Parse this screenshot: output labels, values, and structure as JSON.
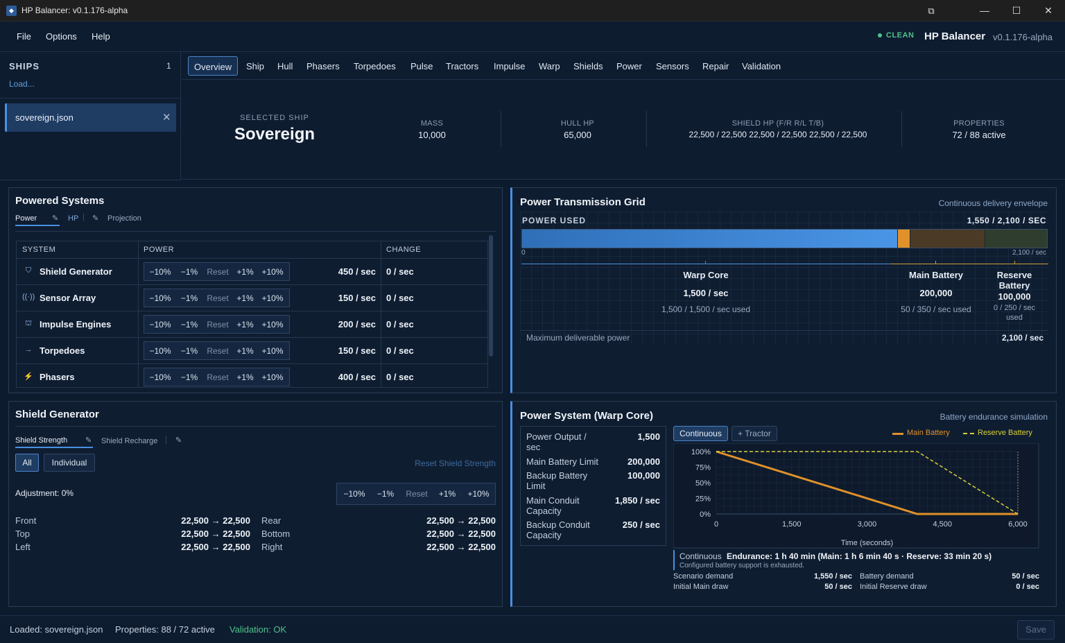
{
  "window": {
    "title": "HP Balancer: v0.1.176-alpha",
    "minimize": "—",
    "maximize": "☐",
    "close": "✕",
    "restore_icon": "⧉"
  },
  "menu": {
    "file": "File",
    "options": "Options",
    "help": "Help"
  },
  "header": {
    "status": "CLEAN",
    "app_name": "HP Balancer",
    "version": "v0.1.176-alpha"
  },
  "sidebar": {
    "title": "SHIPS",
    "count": "1",
    "load": "Load...",
    "files": [
      {
        "name": "sovereign.json",
        "close": "✕"
      }
    ]
  },
  "tabs": [
    "Overview",
    "Ship",
    "Hull",
    "Phasers",
    "Torpedoes",
    "Pulse",
    "Tractors",
    "Impulse",
    "Warp",
    "Shields",
    "Power",
    "Sensors",
    "Repair",
    "Validation"
  ],
  "summary": {
    "selected_label": "SELECTED SHIP",
    "selected_name": "Sovereign",
    "mass_label": "MASS",
    "mass": "10,000",
    "hull_label": "HULL HP",
    "hull": "65,000",
    "shield_label": "SHIELD HP (F/R R/L T/B)",
    "shield": "22,500 / 22,500 22,500 / 22,500 22,500 / 22,500",
    "props_label": "PROPERTIES",
    "props": "72 / 88 active"
  },
  "powered": {
    "title": "Powered Systems",
    "subtabs": [
      "Power",
      "HP",
      "Projection"
    ],
    "headers": [
      "SYSTEM",
      "POWER",
      "CHANGE"
    ],
    "btns": [
      "−10%",
      "−1%",
      "Reset",
      "+1%",
      "+10%"
    ],
    "rows": [
      {
        "name": "Shield Generator",
        "icon": "shield-icon",
        "glyph": "⛉",
        "power": "450 / sec",
        "change": "0 / sec"
      },
      {
        "name": "Sensor Array",
        "icon": "sensor-icon",
        "glyph": "((·))",
        "power": "150 / sec",
        "change": "0 / sec"
      },
      {
        "name": "Impulse Engines",
        "icon": "engine-icon",
        "glyph": "⛫",
        "power": "200 / sec",
        "change": "0 / sec"
      },
      {
        "name": "Torpedoes",
        "icon": "torpedo-icon",
        "glyph": "→",
        "power": "150 / sec",
        "change": "0 / sec"
      },
      {
        "name": "Phasers",
        "icon": "phaser-icon",
        "glyph": "⚡",
        "power": "400 / sec",
        "change": "0 / sec"
      }
    ]
  },
  "grid": {
    "title": "Power Transmission Grid",
    "subtitle": "Continuous delivery envelope",
    "used_label": "POWER USED",
    "used_value": "1,550 / 2,100 / SEC",
    "axis_min": "0",
    "axis_max": "2,100 / sec",
    "bar_segments": [
      {
        "name": "Warp Core used",
        "value": 1500,
        "color": "#3f86d6"
      },
      {
        "name": "Main Battery used",
        "value": 50,
        "color": "#e0912a"
      },
      {
        "name": "Main Battery remaining",
        "value": 300,
        "color": "#4a3a26"
      },
      {
        "name": "Reserve Battery",
        "value": 250,
        "color": "#2f3d2f"
      }
    ],
    "bar_total": 2100,
    "sources": [
      {
        "name": "Warp Core",
        "value": "1,500 / sec",
        "used": "1,500 / 1,500 / sec used"
      },
      {
        "name": "Main Battery",
        "value": "200,000",
        "used": "50 / 350 / sec used"
      },
      {
        "name": "Reserve Battery",
        "value": "100,000",
        "used": "0 / 250 / sec used"
      }
    ],
    "max_label": "Maximum deliverable power",
    "max_value": "2,100 / sec"
  },
  "shield": {
    "title": "Shield Generator",
    "subtabs": [
      "Shield Strength",
      "Shield Recharge"
    ],
    "all": "All",
    "individual": "Individual",
    "reset_link": "Reset Shield Strength",
    "adjustment": "Adjustment: 0%",
    "btns": [
      "−10%",
      "−1%",
      "Reset",
      "+1%",
      "+10%"
    ],
    "facings": [
      {
        "l": "Front",
        "lv": "22,500 → 22,500",
        "r": "Rear",
        "rv": "22,500 → 22,500"
      },
      {
        "l": "Top",
        "lv": "22,500 → 22,500",
        "r": "Bottom",
        "rv": "22,500 → 22,500"
      },
      {
        "l": "Left",
        "lv": "22,500 → 22,500",
        "r": "Right",
        "rv": "22,500 → 22,500"
      }
    ]
  },
  "powersys": {
    "title": "Power System (Warp Core)",
    "subtitle": "Battery endurance simulation",
    "stats": [
      {
        "label": "Power Output / sec",
        "value": "1,500"
      },
      {
        "label": "Main Battery Limit",
        "value": "200,000"
      },
      {
        "label": "Backup Battery Limit",
        "value": "100,000"
      },
      {
        "label": "Main Conduit Capacity",
        "value": "1,850 / sec"
      },
      {
        "label": "Backup Conduit Capacity",
        "value": "250 / sec"
      }
    ],
    "mode_continuous": "Continuous",
    "mode_tractor": "+ Tractor",
    "endurance_mode": "Continuous",
    "endurance": "Endurance: 1 h 40 min (Main: 1 h 6 min 40 s · Reserve: 33 min 20 s)",
    "endurance_note": "Configured battery support is exhausted.",
    "demand": [
      {
        "label": "Scenario demand",
        "value": "1,550 / sec",
        "label2": "Battery demand",
        "value2": "50 / sec"
      },
      {
        "label": "Initial Main draw",
        "value": "50 / sec",
        "label2": "Initial Reserve draw",
        "value2": "0 / sec"
      }
    ]
  },
  "chart_data": {
    "type": "line",
    "xlabel": "Time (seconds)",
    "ylabel": "",
    "xlim": [
      0,
      6000
    ],
    "ylim": [
      0,
      100
    ],
    "xticks": [
      "0",
      "1,500",
      "3,000",
      "4,500",
      "6,000"
    ],
    "yticks": [
      "0%",
      "25%",
      "50%",
      "75%",
      "100%"
    ],
    "legend_position": "top-right",
    "series": [
      {
        "name": "Main Battery",
        "color": "#e0912a",
        "style": "solid",
        "points": [
          [
            0,
            100
          ],
          [
            4000,
            0
          ],
          [
            6000,
            0
          ]
        ]
      },
      {
        "name": "Reserve Battery",
        "color": "#d8cf3c",
        "style": "dashed",
        "points": [
          [
            0,
            100
          ],
          [
            4000,
            100
          ],
          [
            6000,
            0
          ]
        ]
      }
    ],
    "marker_x": 6000
  },
  "footer": {
    "loaded": "Loaded: sovereign.json",
    "properties": "Properties: 88 / 72 active",
    "validation": "Validation: OK",
    "save": "Save"
  }
}
